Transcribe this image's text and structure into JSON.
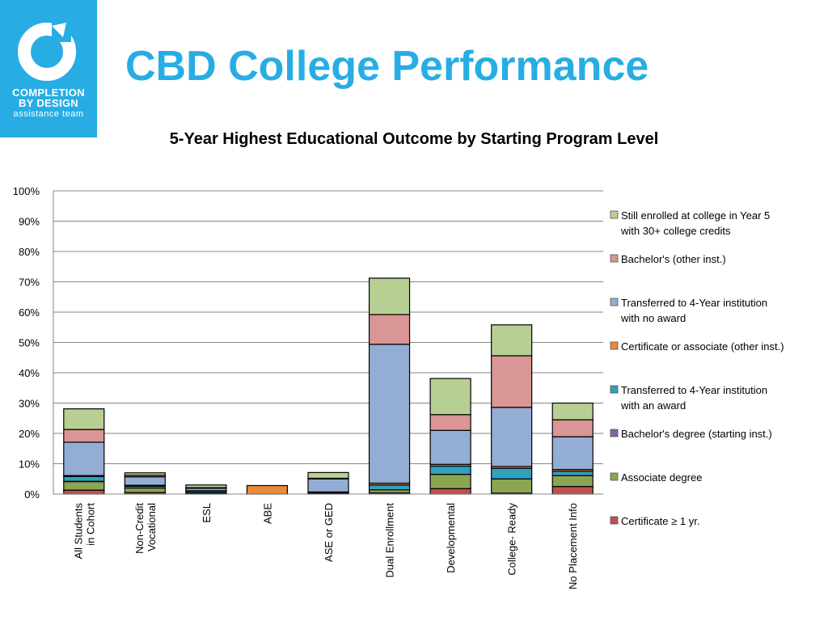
{
  "logo": {
    "line1": "COMPLETION",
    "line2": "BY DESIGN",
    "line3": "assistance team",
    "bg_color": "#27ade4"
  },
  "title": "CBD College Performance",
  "chart_data": {
    "type": "bar",
    "stacked": true,
    "title": "5-Year Highest Educational Outcome by Starting Program Level",
    "ylim": [
      0,
      100
    ],
    "yticks": [
      "0%",
      "10%",
      "20%",
      "30%",
      "40%",
      "50%",
      "60%",
      "70%",
      "80%",
      "90%",
      "100%"
    ],
    "grid": true,
    "legend_position": "right",
    "categories": [
      [
        "All Students",
        "in Cohort"
      ],
      [
        "Non-Credit",
        "Vocational"
      ],
      [
        "ESL"
      ],
      [
        "ABE"
      ],
      [
        "ASE or GED"
      ],
      [
        "Dual Enrollment"
      ],
      [
        "Developmental"
      ],
      [
        "College- Ready"
      ],
      [
        "No Placement Info"
      ]
    ],
    "series": [
      {
        "name": "Certificate ≥ 1 yr.",
        "color": "#c0504d",
        "values": [
          1.3,
          0.5,
          0.2,
          0,
          0.3,
          0.4,
          1.8,
          0.3,
          2.5
        ]
      },
      {
        "name": "Associate degree",
        "color": "#8aa652",
        "values": [
          2.8,
          1.5,
          0.3,
          0,
          0.2,
          1.0,
          4.7,
          4.7,
          3.6
        ]
      },
      {
        "name": "Bachelor's degree (starting inst.)",
        "color": "#7f64a1",
        "values": [
          0.1,
          0,
          0,
          0,
          0,
          0,
          0,
          0,
          0
        ]
      },
      {
        "name": "Transferred to 4-Year institution with an award",
        "color": "#31a1bd",
        "values": [
          1.6,
          0.6,
          0.5,
          0,
          0.2,
          1.6,
          2.7,
          3.5,
          1.4
        ]
      },
      {
        "name": "Certificate or associate (other inst.)",
        "color": "#e88a3c",
        "values": [
          0.3,
          0.3,
          0.1,
          2.8,
          0,
          0.6,
          0.6,
          0.6,
          0.6
        ]
      },
      {
        "name": "Transferred to 4-Year institution with no award",
        "color": "#94add4",
        "values": [
          11.0,
          2.8,
          0.8,
          0,
          4.3,
          45.8,
          11.2,
          19.5,
          10.8
        ]
      },
      {
        "name": "Bachelor's (other inst.)",
        "color": "#d99694",
        "values": [
          4.2,
          0.5,
          0.2,
          0,
          0.2,
          9.8,
          5.2,
          17.0,
          5.6
        ]
      },
      {
        "name": "Still enrolled at college in Year 5 with 30+ college credits",
        "color": "#b8cf93",
        "values": [
          6.8,
          0.8,
          0.9,
          0,
          1.9,
          12.0,
          11.9,
          10.2,
          5.5
        ]
      }
    ],
    "legend": [
      {
        "lines": [
          "Still enrolled at college in Year 5",
          "with 30+ college credits"
        ],
        "color": "#b8cf93"
      },
      {
        "lines": [
          "Bachelor's (other inst.)"
        ],
        "color": "#d99694"
      },
      {
        "lines": [
          "Transferred to 4-Year institution",
          "with no award"
        ],
        "color": "#94add4"
      },
      {
        "lines": [
          "Certificate or associate (other inst.)"
        ],
        "color": "#e88a3c"
      },
      {
        "lines": [
          "Transferred to 4-Year institution",
          "with an award"
        ],
        "color": "#31a1bd"
      },
      {
        "lines": [
          "Bachelor's degree (starting inst.)"
        ],
        "color": "#7f64a1"
      },
      {
        "lines": [
          "Associate degree"
        ],
        "color": "#8aa652"
      },
      {
        "lines": [
          "Certificate ≥ 1 yr."
        ],
        "color": "#c0504d"
      }
    ]
  }
}
